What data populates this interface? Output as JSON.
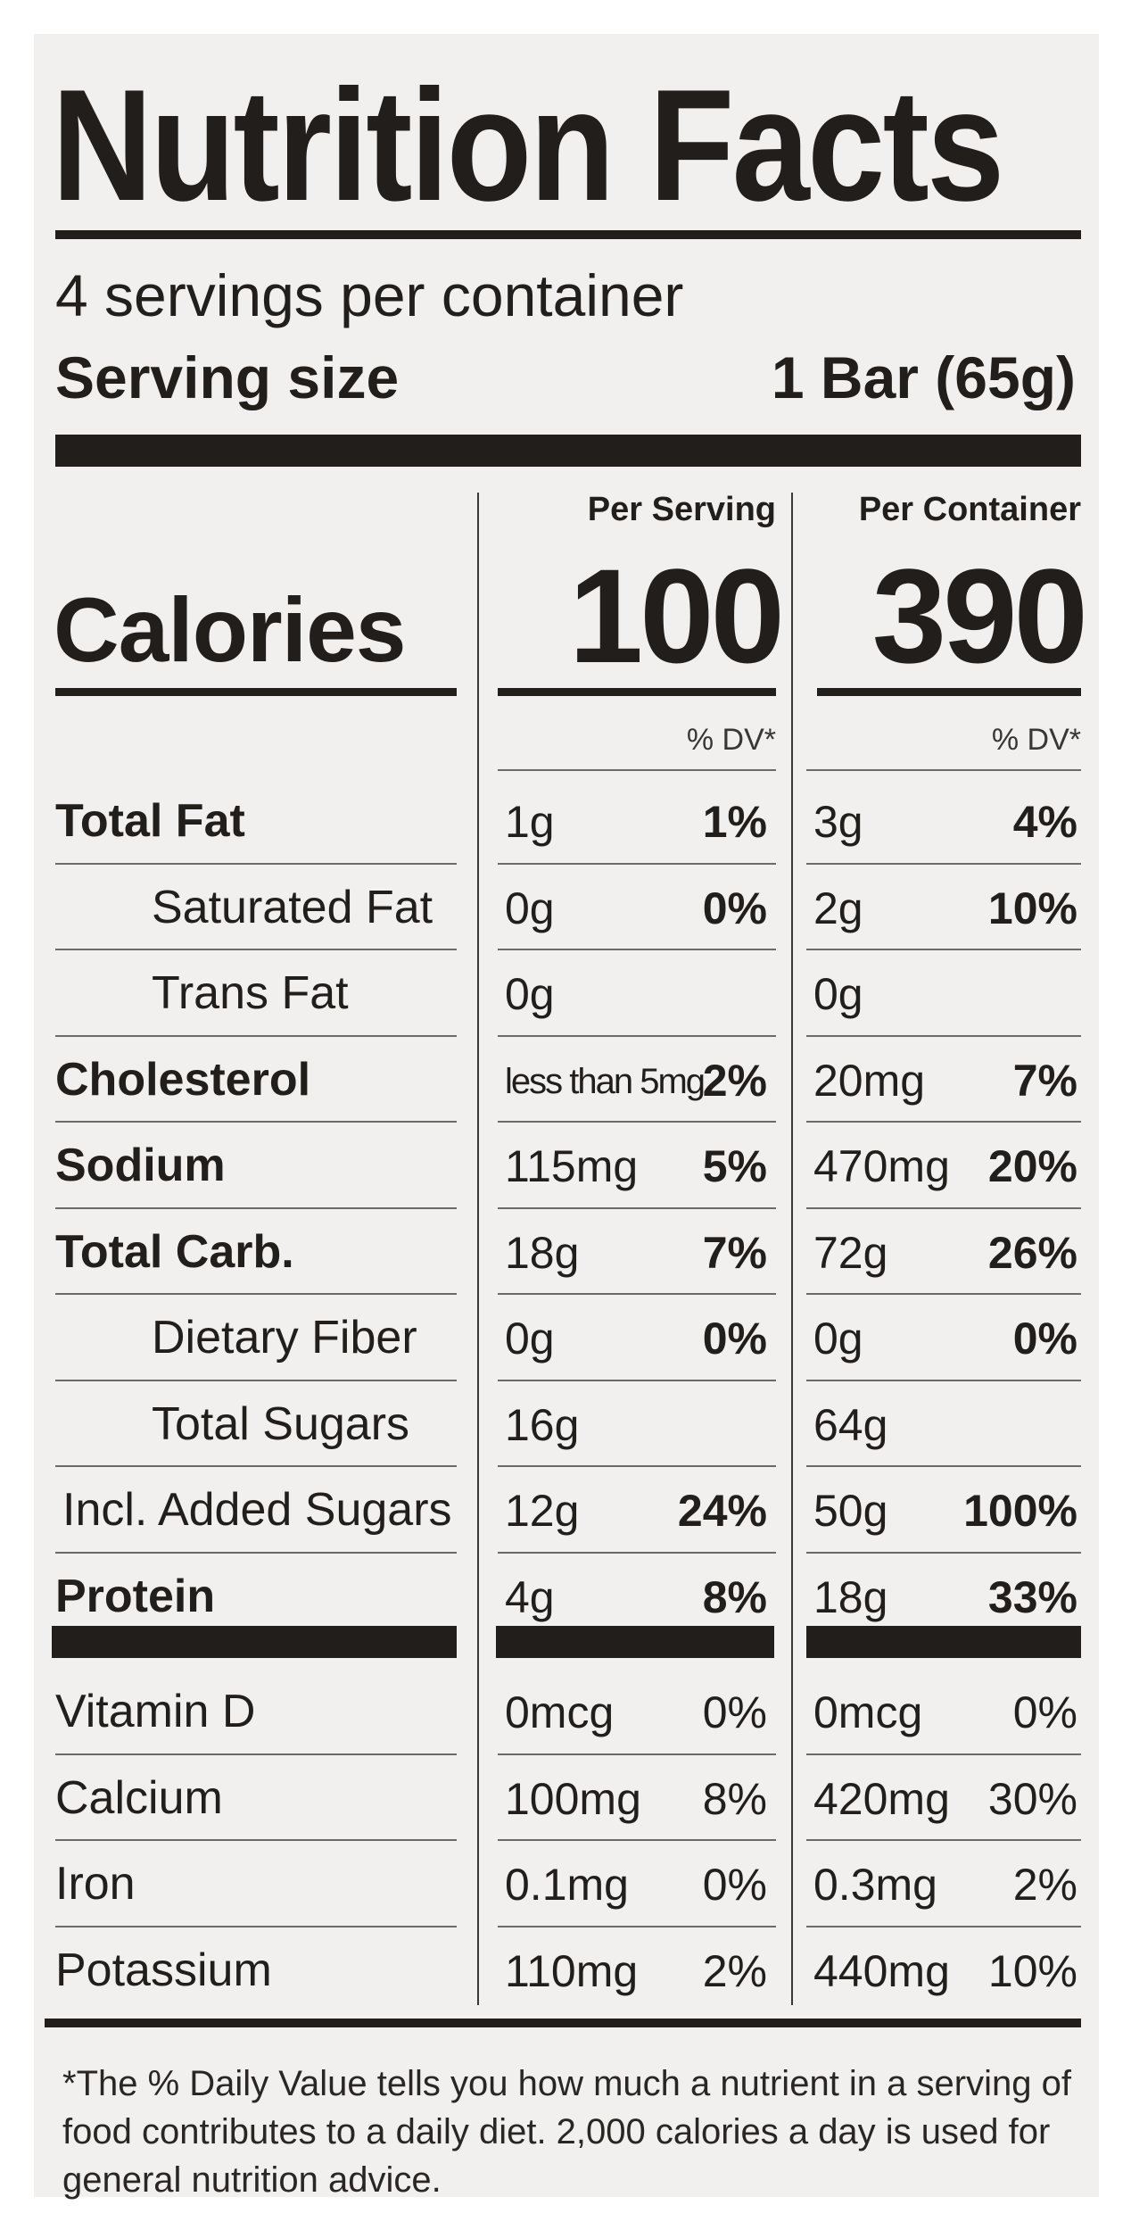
{
  "title": "Nutrition Facts",
  "servings_per_container": "4 servings per container",
  "serving_size_label": "Serving size",
  "serving_size_value": "1 Bar (65g)",
  "per_serving_label": "Per Serving",
  "per_container_label": "Per Container",
  "calories_label": "Calories",
  "calories_per_serving": "100",
  "calories_per_container": "390",
  "dv_label": "% DV*",
  "nutrients": [
    {
      "name": "Total Fat",
      "bold": true,
      "indent": false,
      "serving_amount": "1g",
      "serving_dv": "1%",
      "container_amount": "3g",
      "container_dv": "4%"
    },
    {
      "name": "Saturated Fat",
      "bold": false,
      "indent": true,
      "serving_amount": "0g",
      "serving_dv": "0%",
      "container_amount": "2g",
      "container_dv": "10%"
    },
    {
      "name": "Trans Fat",
      "bold": false,
      "indent": true,
      "serving_amount": "0g",
      "serving_dv": "",
      "container_amount": "0g",
      "container_dv": ""
    },
    {
      "name": "Cholesterol",
      "bold": true,
      "indent": false,
      "serving_amount": "less than 5mg",
      "serving_dv": "2%",
      "container_amount": "20mg",
      "container_dv": "7%"
    },
    {
      "name": "Sodium",
      "bold": true,
      "indent": false,
      "serving_amount": "115mg",
      "serving_dv": "5%",
      "container_amount": "470mg",
      "container_dv": "20%"
    },
    {
      "name": "Total Carb.",
      "bold": true,
      "indent": false,
      "serving_amount": "18g",
      "serving_dv": "7%",
      "container_amount": "72g",
      "container_dv": "26%"
    },
    {
      "name": "Dietary Fiber",
      "bold": false,
      "indent": true,
      "serving_amount": "0g",
      "serving_dv": "0%",
      "container_amount": "0g",
      "container_dv": "0%"
    },
    {
      "name": "Total Sugars",
      "bold": false,
      "indent": true,
      "serving_amount": "16g",
      "serving_dv": "",
      "container_amount": "64g",
      "container_dv": ""
    },
    {
      "name": "Incl. Added Sugars",
      "bold": false,
      "indent": "small",
      "serving_amount": "12g",
      "serving_dv": "24%",
      "container_amount": "50g",
      "container_dv": "100%"
    },
    {
      "name": "Protein",
      "bold": true,
      "indent": false,
      "serving_amount": "4g",
      "serving_dv": "8%",
      "container_amount": "18g",
      "container_dv": "33%"
    }
  ],
  "vitamins": [
    {
      "name": "Vitamin D",
      "serving_amount": "0mcg",
      "serving_dv": "0%",
      "container_amount": "0mcg",
      "container_dv": "0%"
    },
    {
      "name": "Calcium",
      "serving_amount": "100mg",
      "serving_dv": "8%",
      "container_amount": "420mg",
      "container_dv": "30%"
    },
    {
      "name": "Iron",
      "serving_amount": "0.1mg",
      "serving_dv": "0%",
      "container_amount": "0.3mg",
      "container_dv": "2%"
    },
    {
      "name": "Potassium",
      "serving_amount": "110mg",
      "serving_dv": "2%",
      "container_amount": "440mg",
      "container_dv": "10%"
    }
  ],
  "footnote": "*The % Daily Value tells you how much a nutrient in a serving of food contributes to a daily diet. 2,000 calories a day is used for general nutrition advice.",
  "colors": {
    "ink": "#221e1c",
    "background": "#f2f0ee"
  }
}
